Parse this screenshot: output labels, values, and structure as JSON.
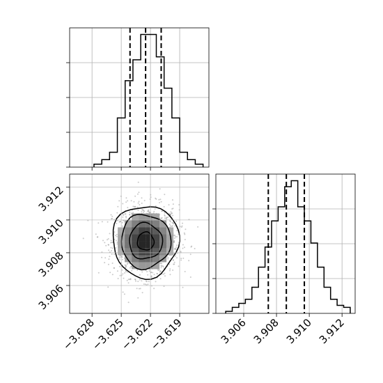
{
  "chart_data": {
    "type": "corner",
    "parameters": [
      "",
      ""
    ],
    "grid": true,
    "quantile_lines": "dashed black",
    "x_axis": {
      "lim": [
        -3.6303,
        -3.616
      ],
      "ticks": [
        -3.628,
        -3.625,
        -3.622,
        -3.619
      ],
      "tick_labels": [
        "−3.628",
        "−3.625",
        "−3.622",
        "−3.619"
      ]
    },
    "y_axis": {
      "lim": [
        3.9043,
        3.9128
      ],
      "ticks": [
        3.906,
        3.908,
        3.91,
        3.912
      ],
      "tick_labels": [
        "3.906",
        "3.908",
        "3.910",
        "3.912"
      ]
    },
    "marginal_x": {
      "type": "histogram-step",
      "bin_edges": [
        -3.6278,
        -3.627,
        -3.6262,
        -3.6254,
        -3.6246,
        -3.6238,
        -3.623,
        -3.6222,
        -3.6214,
        -3.6206,
        -3.6198,
        -3.619,
        -3.6182,
        -3.6174,
        -3.6166
      ],
      "counts": [
        2,
        5,
        10,
        33,
        58,
        72,
        89,
        89,
        74,
        53,
        33,
        10,
        5,
        2
      ],
      "quantiles": [
        -3.6241,
        -3.6225,
        -3.6209
      ]
    },
    "marginal_y": {
      "type": "histogram-step",
      "bin_edges": [
        3.9049,
        3.9053,
        3.9057,
        3.9061,
        3.9065,
        3.9069,
        3.9073,
        3.9077,
        3.9081,
        3.9085,
        3.9089,
        3.9093,
        3.9097,
        3.9101,
        3.9105,
        3.9109,
        3.9113,
        3.9117,
        3.9121,
        3.9125
      ],
      "counts": [
        1,
        3,
        5,
        7,
        13,
        23,
        33,
        46,
        53,
        63,
        66,
        53,
        46,
        35,
        23,
        13,
        7,
        4,
        3
      ],
      "quantiles": [
        3.9075,
        3.9086,
        3.9097
      ]
    },
    "joint": {
      "type": "2d-histogram-contour",
      "center": [
        -3.6225,
        3.9087
      ],
      "sigma": [
        0.0017,
        0.0011
      ],
      "contour_levels": [
        0.5,
        1.0,
        1.5,
        2.0
      ]
    }
  }
}
